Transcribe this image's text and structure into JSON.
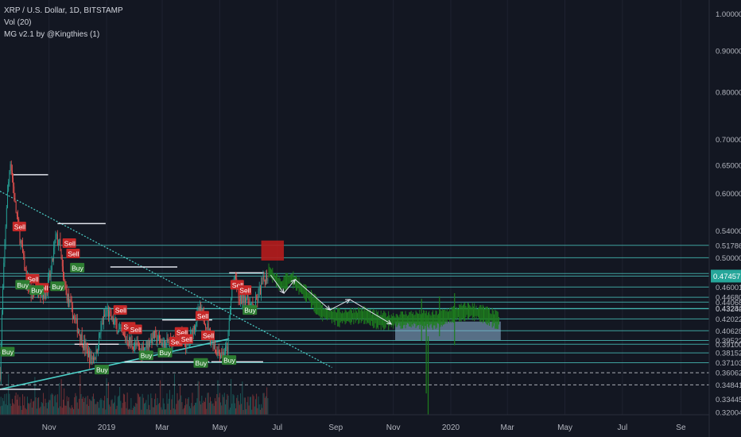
{
  "header": {
    "symbol_line": "XRP / U.S. Dollar, 1D, BITSTAMP",
    "indicator_vol": "Vol (20)",
    "indicator_mg": "MG v2.1 by @Kingthies (1)"
  },
  "colors": {
    "background": "#131722",
    "up": "#26a69a",
    "down": "#ef5350",
    "level_line": "#4dd0c8",
    "projection": "#1e7f1e",
    "sell_box": "#b71c1c",
    "buy_box": "#8fb8d8",
    "current_price": "#26a69a"
  },
  "chart_data": {
    "type": "candlestick",
    "title": "XRP / U.S. Dollar, 1D, BITSTAMP",
    "y_scale": "log",
    "ylim": [
      0.32,
      1.04
    ],
    "xlim": [
      "2018-09-10",
      "2020-10-01"
    ],
    "x_ticks": [
      {
        "label": "Nov",
        "date": "2018-11-01"
      },
      {
        "label": "2019",
        "date": "2019-01-01"
      },
      {
        "label": "Mar",
        "date": "2019-03-01"
      },
      {
        "label": "May",
        "date": "2019-05-01"
      },
      {
        "label": "Jul",
        "date": "2019-07-01"
      },
      {
        "label": "Sep",
        "date": "2019-09-01"
      },
      {
        "label": "Nov",
        "date": "2019-11-01"
      },
      {
        "label": "2020",
        "date": "2020-01-01"
      },
      {
        "label": "Mar",
        "date": "2020-03-01"
      },
      {
        "label": "May",
        "date": "2020-05-01"
      },
      {
        "label": "Jul",
        "date": "2020-07-01"
      },
      {
        "label": "Se",
        "date": "2020-09-01"
      }
    ],
    "y_ticks": [
      "1.00000",
      "0.90000",
      "0.80000",
      "0.70000",
      "0.65000",
      "0.60000",
      "0.54000",
      "0.51786",
      "0.50000",
      "0.47799",
      "0.46001",
      "0.44680",
      "0.44068",
      "0.43284",
      "0.43242",
      "0.42022",
      "0.40628",
      "0.39522",
      "0.39100",
      "0.38152",
      "0.37103",
      "0.36062",
      "0.34841",
      "0.33445",
      "0.32004"
    ],
    "current_price": {
      "label": "0.47457",
      "value": 0.47457
    },
    "horizontal_levels": [
      0.51786,
      0.5,
      0.47799,
      0.47457,
      0.46001,
      0.4468,
      0.44068,
      0.43284,
      0.43242,
      0.42022,
      0.40628,
      0.39522,
      0.391,
      0.38152,
      0.37103
    ],
    "dashed_levels": [
      0.36062,
      0.34841
    ],
    "price_path": [
      [
        "2018-09-10",
        0.36
      ],
      [
        "2018-09-17",
        0.58
      ],
      [
        "2018-09-21",
        0.66
      ],
      [
        "2018-09-26",
        0.58
      ],
      [
        "2018-10-01",
        0.53
      ],
      [
        "2018-10-08",
        0.47
      ],
      [
        "2018-10-14",
        0.45
      ],
      [
        "2018-10-20",
        0.46
      ],
      [
        "2018-10-28",
        0.45
      ],
      [
        "2018-11-03",
        0.48
      ],
      [
        "2018-11-08",
        0.53
      ],
      [
        "2018-11-12",
        0.52
      ],
      [
        "2018-11-16",
        0.47
      ],
      [
        "2018-11-20",
        0.45
      ],
      [
        "2018-11-25",
        0.43
      ],
      [
        "2018-12-01",
        0.41
      ],
      [
        "2018-12-08",
        0.39
      ],
      [
        "2018-12-15",
        0.375
      ],
      [
        "2018-12-21",
        0.38
      ],
      [
        "2018-12-26",
        0.41
      ],
      [
        "2019-01-01",
        0.43
      ],
      [
        "2019-01-06",
        0.42
      ],
      [
        "2019-01-12",
        0.41
      ],
      [
        "2019-01-18",
        0.4
      ],
      [
        "2019-01-24",
        0.395
      ],
      [
        "2019-01-30",
        0.39
      ],
      [
        "2019-02-06",
        0.385
      ],
      [
        "2019-02-12",
        0.39
      ],
      [
        "2019-02-20",
        0.4
      ],
      [
        "2019-02-26",
        0.395
      ],
      [
        "2019-03-04",
        0.39
      ],
      [
        "2019-03-12",
        0.395
      ],
      [
        "2019-03-20",
        0.4
      ],
      [
        "2019-03-28",
        0.39
      ],
      [
        "2019-04-03",
        0.41
      ],
      [
        "2019-04-09",
        0.43
      ],
      [
        "2019-04-15",
        0.42
      ],
      [
        "2019-04-21",
        0.4
      ],
      [
        "2019-04-27",
        0.385
      ],
      [
        "2019-05-03",
        0.38
      ],
      [
        "2019-05-09",
        0.385
      ],
      [
        "2019-05-14",
        0.46
      ],
      [
        "2019-05-18",
        0.47
      ],
      [
        "2019-05-22",
        0.44
      ],
      [
        "2019-05-27",
        0.45
      ],
      [
        "2019-06-01",
        0.44
      ],
      [
        "2019-06-06",
        0.43
      ],
      [
        "2019-06-11",
        0.45
      ],
      [
        "2019-06-17",
        0.47
      ],
      [
        "2019-06-21",
        0.47457
      ]
    ],
    "projection": {
      "color": "#1e7f1e",
      "start": "2019-06-22",
      "end": "2020-02-21",
      "path": [
        [
          "2019-06-22",
          0.482
        ],
        [
          "2019-07-05",
          0.462
        ],
        [
          "2019-07-16",
          0.472
        ],
        [
          "2019-08-05",
          0.446
        ],
        [
          "2019-08-18",
          0.428
        ],
        [
          "2019-09-05",
          0.422
        ],
        [
          "2019-10-01",
          0.425
        ],
        [
          "2019-10-15",
          0.419
        ],
        [
          "2019-11-01",
          0.418
        ],
        [
          "2019-11-20",
          0.42
        ],
        [
          "2019-12-15",
          0.419
        ],
        [
          "2020-01-01",
          0.425
        ],
        [
          "2020-01-20",
          0.43
        ],
        [
          "2020-02-05",
          0.426
        ],
        [
          "2020-02-21",
          0.418
        ]
      ]
    },
    "projection_arrows": [
      [
        [
          "2019-06-24",
          0.476
        ],
        [
          "2019-07-08",
          0.452
        ]
      ],
      [
        [
          "2019-07-08",
          0.452
        ],
        [
          "2019-07-20",
          0.47
        ]
      ],
      [
        [
          "2019-07-20",
          0.47
        ],
        [
          "2019-08-26",
          0.431
        ]
      ],
      [
        [
          "2019-08-26",
          0.431
        ],
        [
          "2019-09-16",
          0.444
        ]
      ],
      [
        [
          "2019-09-16",
          0.444
        ],
        [
          "2019-10-30",
          0.414
        ]
      ]
    ],
    "zones": [
      {
        "kind": "sell",
        "x": [
          "2019-06-14",
          "2019-07-08"
        ],
        "y": [
          0.496,
          0.525
        ]
      },
      {
        "kind": "buy",
        "x": [
          "2019-11-03",
          "2020-02-23"
        ],
        "y": [
          0.3955,
          0.417
        ]
      }
    ],
    "trendlines": [
      {
        "style": "dotted",
        "points": [
          [
            "2018-09-10",
            0.604
          ],
          [
            "2019-08-28",
            0.366
          ]
        ]
      },
      {
        "style": "solid",
        "points": [
          [
            "2018-09-10",
            0.344
          ],
          [
            "2019-05-11",
            0.397
          ]
        ]
      }
    ],
    "range_lines": [
      {
        "from": "2018-09-24",
        "to": "2018-10-31",
        "value": 0.633
      },
      {
        "from": "2018-11-10",
        "to": "2018-12-31",
        "value": 0.551
      },
      {
        "from": "2019-01-05",
        "to": "2019-03-17",
        "value": 0.487
      },
      {
        "from": "2019-03-01",
        "to": "2019-04-23",
        "value": 0.419
      },
      {
        "from": "2019-05-11",
        "to": "2019-06-17",
        "value": 0.479
      },
      {
        "from": "2018-09-10",
        "to": "2018-10-23",
        "value": 0.344
      },
      {
        "from": "2018-11-28",
        "to": "2019-01-14",
        "value": 0.391
      },
      {
        "from": "2019-01-20",
        "to": "2019-04-20",
        "value": 0.372
      },
      {
        "from": "2019-04-22",
        "to": "2019-05-10",
        "value": 0.372
      },
      {
        "from": "2019-05-06",
        "to": "2019-06-16",
        "value": 0.372
      }
    ],
    "signals": [
      {
        "label": "Sell",
        "kind": "sell",
        "date": "2018-09-25",
        "value": 0.545
      },
      {
        "label": "Sell",
        "kind": "sell",
        "date": "2018-10-09",
        "value": 0.47
      },
      {
        "label": "Sell",
        "kind": "sell",
        "date": "2018-11-17",
        "value": 0.52
      },
      {
        "label": "Sell",
        "kind": "sell",
        "date": "2018-11-21",
        "value": 0.505
      },
      {
        "label": "Sell",
        "kind": "sell",
        "date": "2018-10-19",
        "value": 0.458
      },
      {
        "label": "Buy",
        "kind": "buy",
        "date": "2018-09-28",
        "value": 0.462
      },
      {
        "label": "Buy",
        "kind": "buy",
        "date": "2018-10-13",
        "value": 0.455
      },
      {
        "label": "Buy",
        "kind": "buy",
        "date": "2018-11-04",
        "value": 0.46
      },
      {
        "label": "Buy",
        "kind": "buy",
        "date": "2018-11-25",
        "value": 0.485
      },
      {
        "label": "Buy",
        "kind": "buy",
        "date": "2018-09-12",
        "value": 0.382
      },
      {
        "label": "Buy",
        "kind": "buy",
        "date": "2018-12-21",
        "value": 0.363
      },
      {
        "label": "Sell",
        "kind": "sell",
        "date": "2019-01-10",
        "value": 0.43
      },
      {
        "label": "Sell",
        "kind": "sell",
        "date": "2019-01-19",
        "value": 0.41
      },
      {
        "label": "Sell",
        "kind": "sell",
        "date": "2019-01-26",
        "value": 0.407
      },
      {
        "label": "Buy",
        "kind": "buy",
        "date": "2019-02-06",
        "value": 0.378
      },
      {
        "label": "Buy",
        "kind": "buy",
        "date": "2019-02-26",
        "value": 0.381
      },
      {
        "label": "Sell",
        "kind": "sell",
        "date": "2019-03-10",
        "value": 0.393
      },
      {
        "label": "Sell",
        "kind": "sell",
        "date": "2019-03-16",
        "value": 0.404
      },
      {
        "label": "Sell",
        "kind": "sell",
        "date": "2019-03-21",
        "value": 0.396
      },
      {
        "label": "Sell",
        "kind": "sell",
        "date": "2019-04-07",
        "value": 0.423
      },
      {
        "label": "Sell",
        "kind": "sell",
        "date": "2019-04-13",
        "value": 0.4
      },
      {
        "label": "Buy",
        "kind": "buy",
        "date": "2019-04-05",
        "value": 0.37
      },
      {
        "label": "Sell",
        "kind": "sell",
        "date": "2019-05-14",
        "value": 0.462
      },
      {
        "label": "Sell",
        "kind": "sell",
        "date": "2019-05-22",
        "value": 0.455
      },
      {
        "label": "Buy",
        "kind": "buy",
        "date": "2019-05-05",
        "value": 0.373
      },
      {
        "label": "Buy",
        "kind": "buy",
        "date": "2019-05-27",
        "value": 0.43
      }
    ]
  }
}
